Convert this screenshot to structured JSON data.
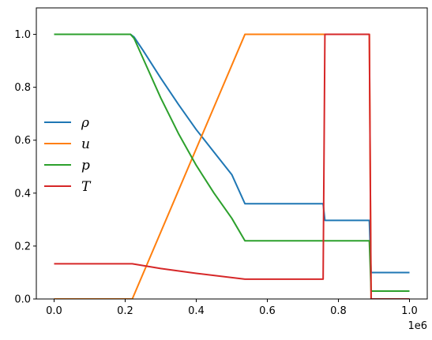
{
  "chart_data": {
    "type": "line",
    "title": "",
    "xlabel": "",
    "ylabel": "",
    "x_offset_label": "1e6",
    "xlim": [
      -0.05,
      1.05
    ],
    "ylim": [
      0.0,
      1.1
    ],
    "x_scale": 1000000,
    "x_ticks": [
      0.0,
      0.2,
      0.4,
      0.6,
      0.8,
      1.0
    ],
    "x_tick_labels": [
      "0.0",
      "0.2",
      "0.4",
      "0.6",
      "0.8",
      "1.0"
    ],
    "y_ticks": [
      0.0,
      0.2,
      0.4,
      0.6,
      0.8,
      1.0
    ],
    "y_tick_labels": [
      "0.0",
      "0.2",
      "0.4",
      "0.6",
      "0.8",
      "1.0"
    ],
    "grid": false,
    "legend_position": "center-left",
    "series": [
      {
        "name": "ρ",
        "color": "#1f77b4",
        "points": [
          [
            0.0,
            1.0
          ],
          [
            0.215,
            1.0
          ],
          [
            0.225,
            0.99
          ],
          [
            0.25,
            0.94
          ],
          [
            0.3,
            0.835
          ],
          [
            0.35,
            0.735
          ],
          [
            0.4,
            0.64
          ],
          [
            0.45,
            0.555
          ],
          [
            0.5,
            0.47
          ],
          [
            0.537,
            0.36
          ],
          [
            0.757,
            0.36
          ],
          [
            0.762,
            0.297
          ],
          [
            0.887,
            0.297
          ],
          [
            0.892,
            0.1
          ],
          [
            1.0,
            0.1
          ]
        ]
      },
      {
        "name": "u",
        "color": "#ff7f0e",
        "points": [
          [
            0.0,
            0.0
          ],
          [
            0.22,
            0.0
          ],
          [
            0.537,
            1.0
          ],
          [
            0.76,
            1.0
          ],
          [
            0.887,
            1.0
          ],
          [
            0.892,
            0.0
          ],
          [
            1.0,
            0.0
          ]
        ]
      },
      {
        "name": "p",
        "color": "#2ca02c",
        "points": [
          [
            0.0,
            1.0
          ],
          [
            0.215,
            1.0
          ],
          [
            0.225,
            0.985
          ],
          [
            0.25,
            0.91
          ],
          [
            0.3,
            0.76
          ],
          [
            0.35,
            0.625
          ],
          [
            0.4,
            0.505
          ],
          [
            0.45,
            0.4
          ],
          [
            0.5,
            0.305
          ],
          [
            0.537,
            0.22
          ],
          [
            0.887,
            0.22
          ],
          [
            0.892,
            0.03
          ],
          [
            1.0,
            0.03
          ]
        ]
      },
      {
        "name": "T",
        "color": "#d62728",
        "points": [
          [
            0.0,
            0.133
          ],
          [
            0.22,
            0.133
          ],
          [
            0.3,
            0.115
          ],
          [
            0.4,
            0.097
          ],
          [
            0.537,
            0.075
          ],
          [
            0.757,
            0.075
          ],
          [
            0.762,
            1.0
          ],
          [
            0.887,
            1.0
          ],
          [
            0.892,
            0.0
          ],
          [
            1.0,
            0.0
          ]
        ]
      }
    ]
  }
}
